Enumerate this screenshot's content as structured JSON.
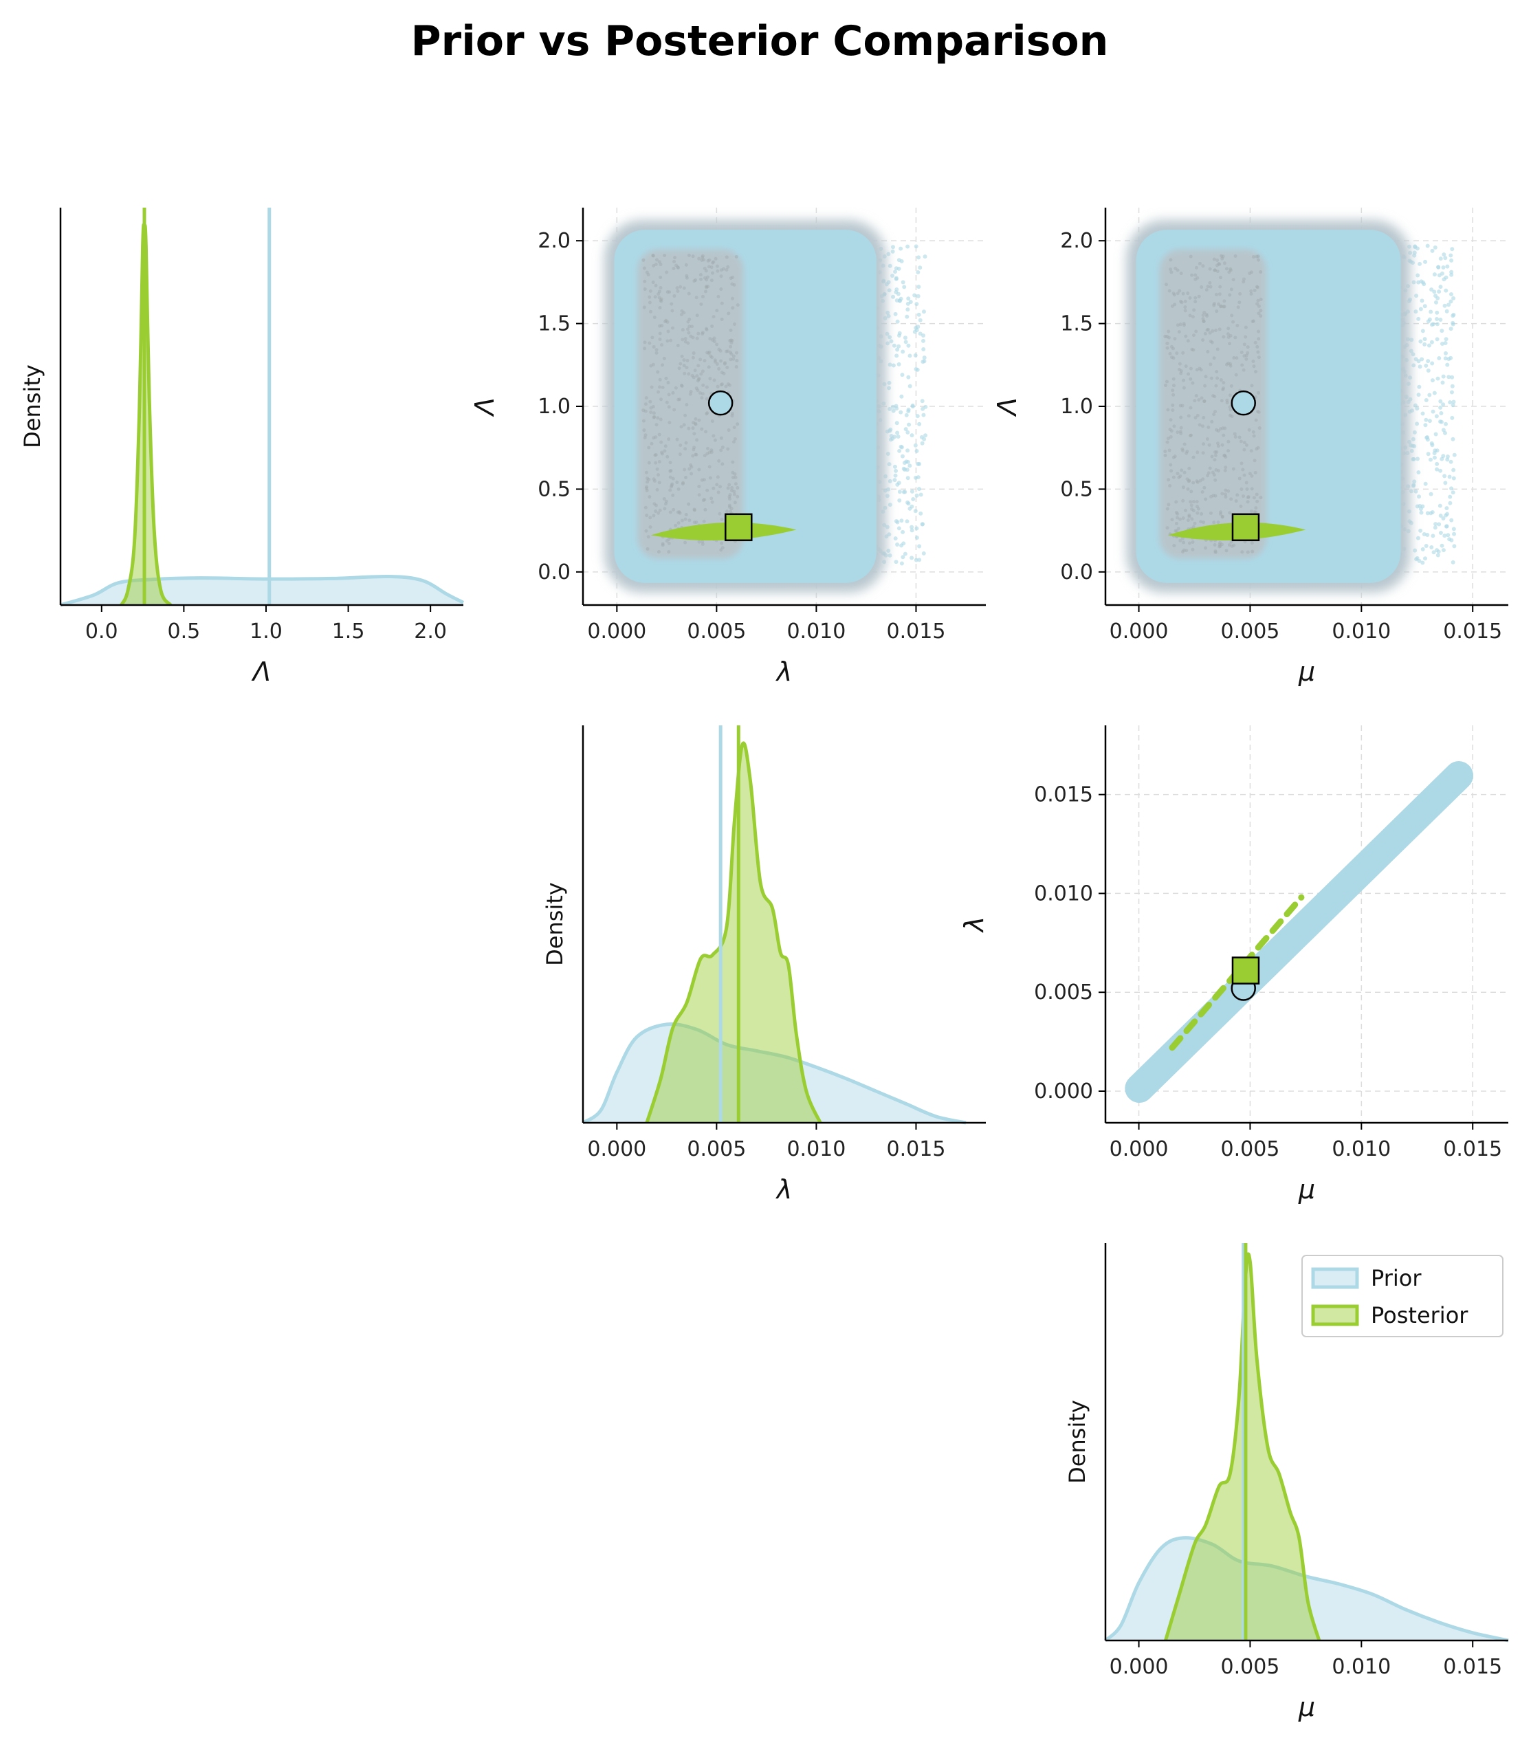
{
  "title": "Prior vs Posterior Comparison",
  "colors": {
    "prior": "#add8e6",
    "posterior": "#9acd32",
    "prior_dark": "#b9c7cf"
  },
  "legend": {
    "entries": [
      "Prior",
      "Posterior"
    ],
    "placement": "top-right of bottom-right panel"
  },
  "density_label": "Density",
  "chart_data": [
    {
      "panel": "diag-Lambda",
      "type": "area",
      "xlabel": "Λ",
      "ylabel": "Density",
      "xlim": [
        -0.25,
        2.2
      ],
      "xticks": [
        "0.0",
        "0.5",
        "1.0",
        "1.5",
        "2.0"
      ],
      "xtick_values": [
        0.0,
        0.5,
        1.0,
        1.5,
        2.0
      ],
      "true_value": 1.02,
      "posterior_mean": 0.26,
      "series": [
        {
          "name": "Prior",
          "x": [
            -0.25,
            -0.05,
            0.1,
            0.3,
            0.6,
            1.0,
            1.4,
            1.75,
            1.95,
            2.1,
            2.2
          ],
          "y": [
            0.0,
            0.2,
            0.45,
            0.52,
            0.55,
            0.53,
            0.54,
            0.58,
            0.5,
            0.22,
            0.05
          ]
        },
        {
          "name": "Posterior",
          "x": [
            0.12,
            0.16,
            0.2,
            0.23,
            0.25,
            0.26,
            0.27,
            0.29,
            0.32,
            0.36,
            0.42
          ],
          "y": [
            0.0,
            0.3,
            1.3,
            4.0,
            7.3,
            7.7,
            7.3,
            4.2,
            1.5,
            0.3,
            0.0
          ]
        }
      ]
    },
    {
      "panel": "scatter-lambda-Lambda",
      "type": "scatter",
      "xlabel": "λ",
      "ylabel": "Λ",
      "xlim": [
        -0.0017,
        0.0185
      ],
      "ylim": [
        -0.2,
        2.2
      ],
      "xticks": [
        "0.000",
        "0.005",
        "0.010",
        "0.015"
      ],
      "xtick_values": [
        0.0,
        0.005,
        0.01,
        0.015
      ],
      "yticks": [
        "0.0",
        "0.5",
        "1.0",
        "1.5",
        "2.0"
      ],
      "ytick_values": [
        0.0,
        0.5,
        1.0,
        1.5,
        2.0
      ],
      "grid": true,
      "prior_region": {
        "x": [
          0.0,
          0.0135
        ],
        "y": [
          -0.05,
          2.05
        ]
      },
      "prior_scatter_x": [
        0.011,
        0.0155
      ],
      "prior_scatter_y": [
        0.05,
        1.97
      ],
      "posterior_band": {
        "x": [
          0.0017,
          0.009
        ],
        "y": [
          0.17,
          0.34
        ]
      },
      "true_point": [
        0.0052,
        1.02
      ],
      "posterior_point": [
        0.0061,
        0.27
      ]
    },
    {
      "panel": "scatter-mu-Lambda",
      "type": "scatter",
      "xlabel": "μ",
      "ylabel": "Λ",
      "xlim": [
        -0.0015,
        0.0166
      ],
      "ylim": [
        -0.2,
        2.2
      ],
      "xticks": [
        "0.000",
        "0.005",
        "0.010",
        "0.015"
      ],
      "xtick_values": [
        0.0,
        0.005,
        0.01,
        0.015
      ],
      "yticks": [
        "0.0",
        "0.5",
        "1.0",
        "1.5",
        "2.0"
      ],
      "ytick_values": [
        0.0,
        0.5,
        1.0,
        1.5,
        2.0
      ],
      "grid": true,
      "prior_region": {
        "x": [
          0.0,
          0.0122
        ],
        "y": [
          -0.05,
          2.05
        ]
      },
      "prior_scatter_x": [
        0.0105,
        0.0142
      ],
      "prior_scatter_y": [
        0.05,
        1.97
      ],
      "posterior_band": {
        "x": [
          0.0013,
          0.0075
        ],
        "y": [
          0.17,
          0.34
        ]
      },
      "true_point": [
        0.0047,
        1.02
      ],
      "posterior_point": [
        0.0048,
        0.27
      ]
    },
    {
      "panel": "diag-lambda",
      "type": "area",
      "xlabel": "λ",
      "ylabel": "Density",
      "xlim": [
        -0.0017,
        0.0185
      ],
      "xticks": [
        "0.000",
        "0.005",
        "0.010",
        "0.015"
      ],
      "xtick_values": [
        0.0,
        0.005,
        0.01,
        0.015
      ],
      "true_value": 0.0052,
      "posterior_mean": 0.0061,
      "series": [
        {
          "name": "Prior",
          "x": [
            -0.0017,
            -0.0008,
            0.0,
            0.001,
            0.0025,
            0.004,
            0.0055,
            0.007,
            0.0085,
            0.01,
            0.0115,
            0.013,
            0.0145,
            0.016,
            0.0175
          ],
          "y": [
            0.0,
            0.1,
            0.4,
            0.68,
            0.78,
            0.74,
            0.62,
            0.57,
            0.52,
            0.44,
            0.35,
            0.25,
            0.15,
            0.05,
            0.0
          ]
        },
        {
          "name": "Posterior",
          "x": [
            0.0015,
            0.0022,
            0.0028,
            0.0035,
            0.0042,
            0.0048,
            0.0055,
            0.0059,
            0.0063,
            0.0067,
            0.0072,
            0.0078,
            0.0082,
            0.0086,
            0.009,
            0.0095,
            0.0102
          ],
          "y": [
            0.0,
            0.35,
            0.75,
            0.95,
            1.3,
            1.33,
            1.55,
            2.4,
            3.0,
            2.7,
            1.9,
            1.7,
            1.35,
            1.25,
            0.7,
            0.25,
            0.0
          ]
        }
      ]
    },
    {
      "panel": "scatter-mu-lambda",
      "type": "scatter",
      "xlabel": "μ",
      "ylabel": "λ",
      "xlim": [
        -0.0015,
        0.0166
      ],
      "ylim": [
        -0.0016,
        0.0185
      ],
      "xticks": [
        "0.000",
        "0.005",
        "0.010",
        "0.015"
      ],
      "xtick_values": [
        0.0,
        0.005,
        0.01,
        0.015
      ],
      "yticks": [
        "0.000",
        "0.005",
        "0.010",
        "0.015"
      ],
      "ytick_values": [
        0.0,
        0.005,
        0.01,
        0.015
      ],
      "grid": true,
      "prior_band": {
        "from": [
          -0.0001,
          0.0
        ],
        "to": [
          0.0145,
          0.0161
        ]
      },
      "posterior_band": {
        "from": [
          0.0015,
          0.0022
        ],
        "to": [
          0.0073,
          0.0098
        ]
      },
      "true_point": [
        0.0047,
        0.0052
      ],
      "posterior_point": [
        0.0048,
        0.0061
      ]
    },
    {
      "panel": "diag-mu",
      "type": "area",
      "xlabel": "μ",
      "ylabel": "Density",
      "xlim": [
        -0.0015,
        0.0166
      ],
      "xticks": [
        "0.000",
        "0.005",
        "0.010",
        "0.015"
      ],
      "xtick_values": [
        0.0,
        0.005,
        0.01,
        0.015
      ],
      "true_value": 0.0047,
      "posterior_mean": 0.0048,
      "series": [
        {
          "name": "Prior",
          "x": [
            -0.0015,
            -0.0008,
            0.0,
            0.001,
            0.002,
            0.0033,
            0.0045,
            0.006,
            0.0075,
            0.009,
            0.0105,
            0.012,
            0.0135,
            0.015,
            0.0166
          ],
          "y": [
            0.0,
            0.12,
            0.45,
            0.72,
            0.8,
            0.75,
            0.62,
            0.58,
            0.5,
            0.44,
            0.36,
            0.24,
            0.14,
            0.06,
            0.0
          ]
        },
        {
          "name": "Posterior",
          "x": [
            0.0012,
            0.0018,
            0.0025,
            0.003,
            0.0036,
            0.0041,
            0.0045,
            0.0048,
            0.005,
            0.0053,
            0.0058,
            0.0063,
            0.0068,
            0.0072,
            0.0076,
            0.0081
          ],
          "y": [
            0.0,
            0.35,
            0.75,
            0.9,
            1.2,
            1.3,
            1.9,
            2.85,
            2.95,
            2.2,
            1.5,
            1.3,
            1.0,
            0.8,
            0.3,
            0.0
          ]
        }
      ]
    }
  ]
}
